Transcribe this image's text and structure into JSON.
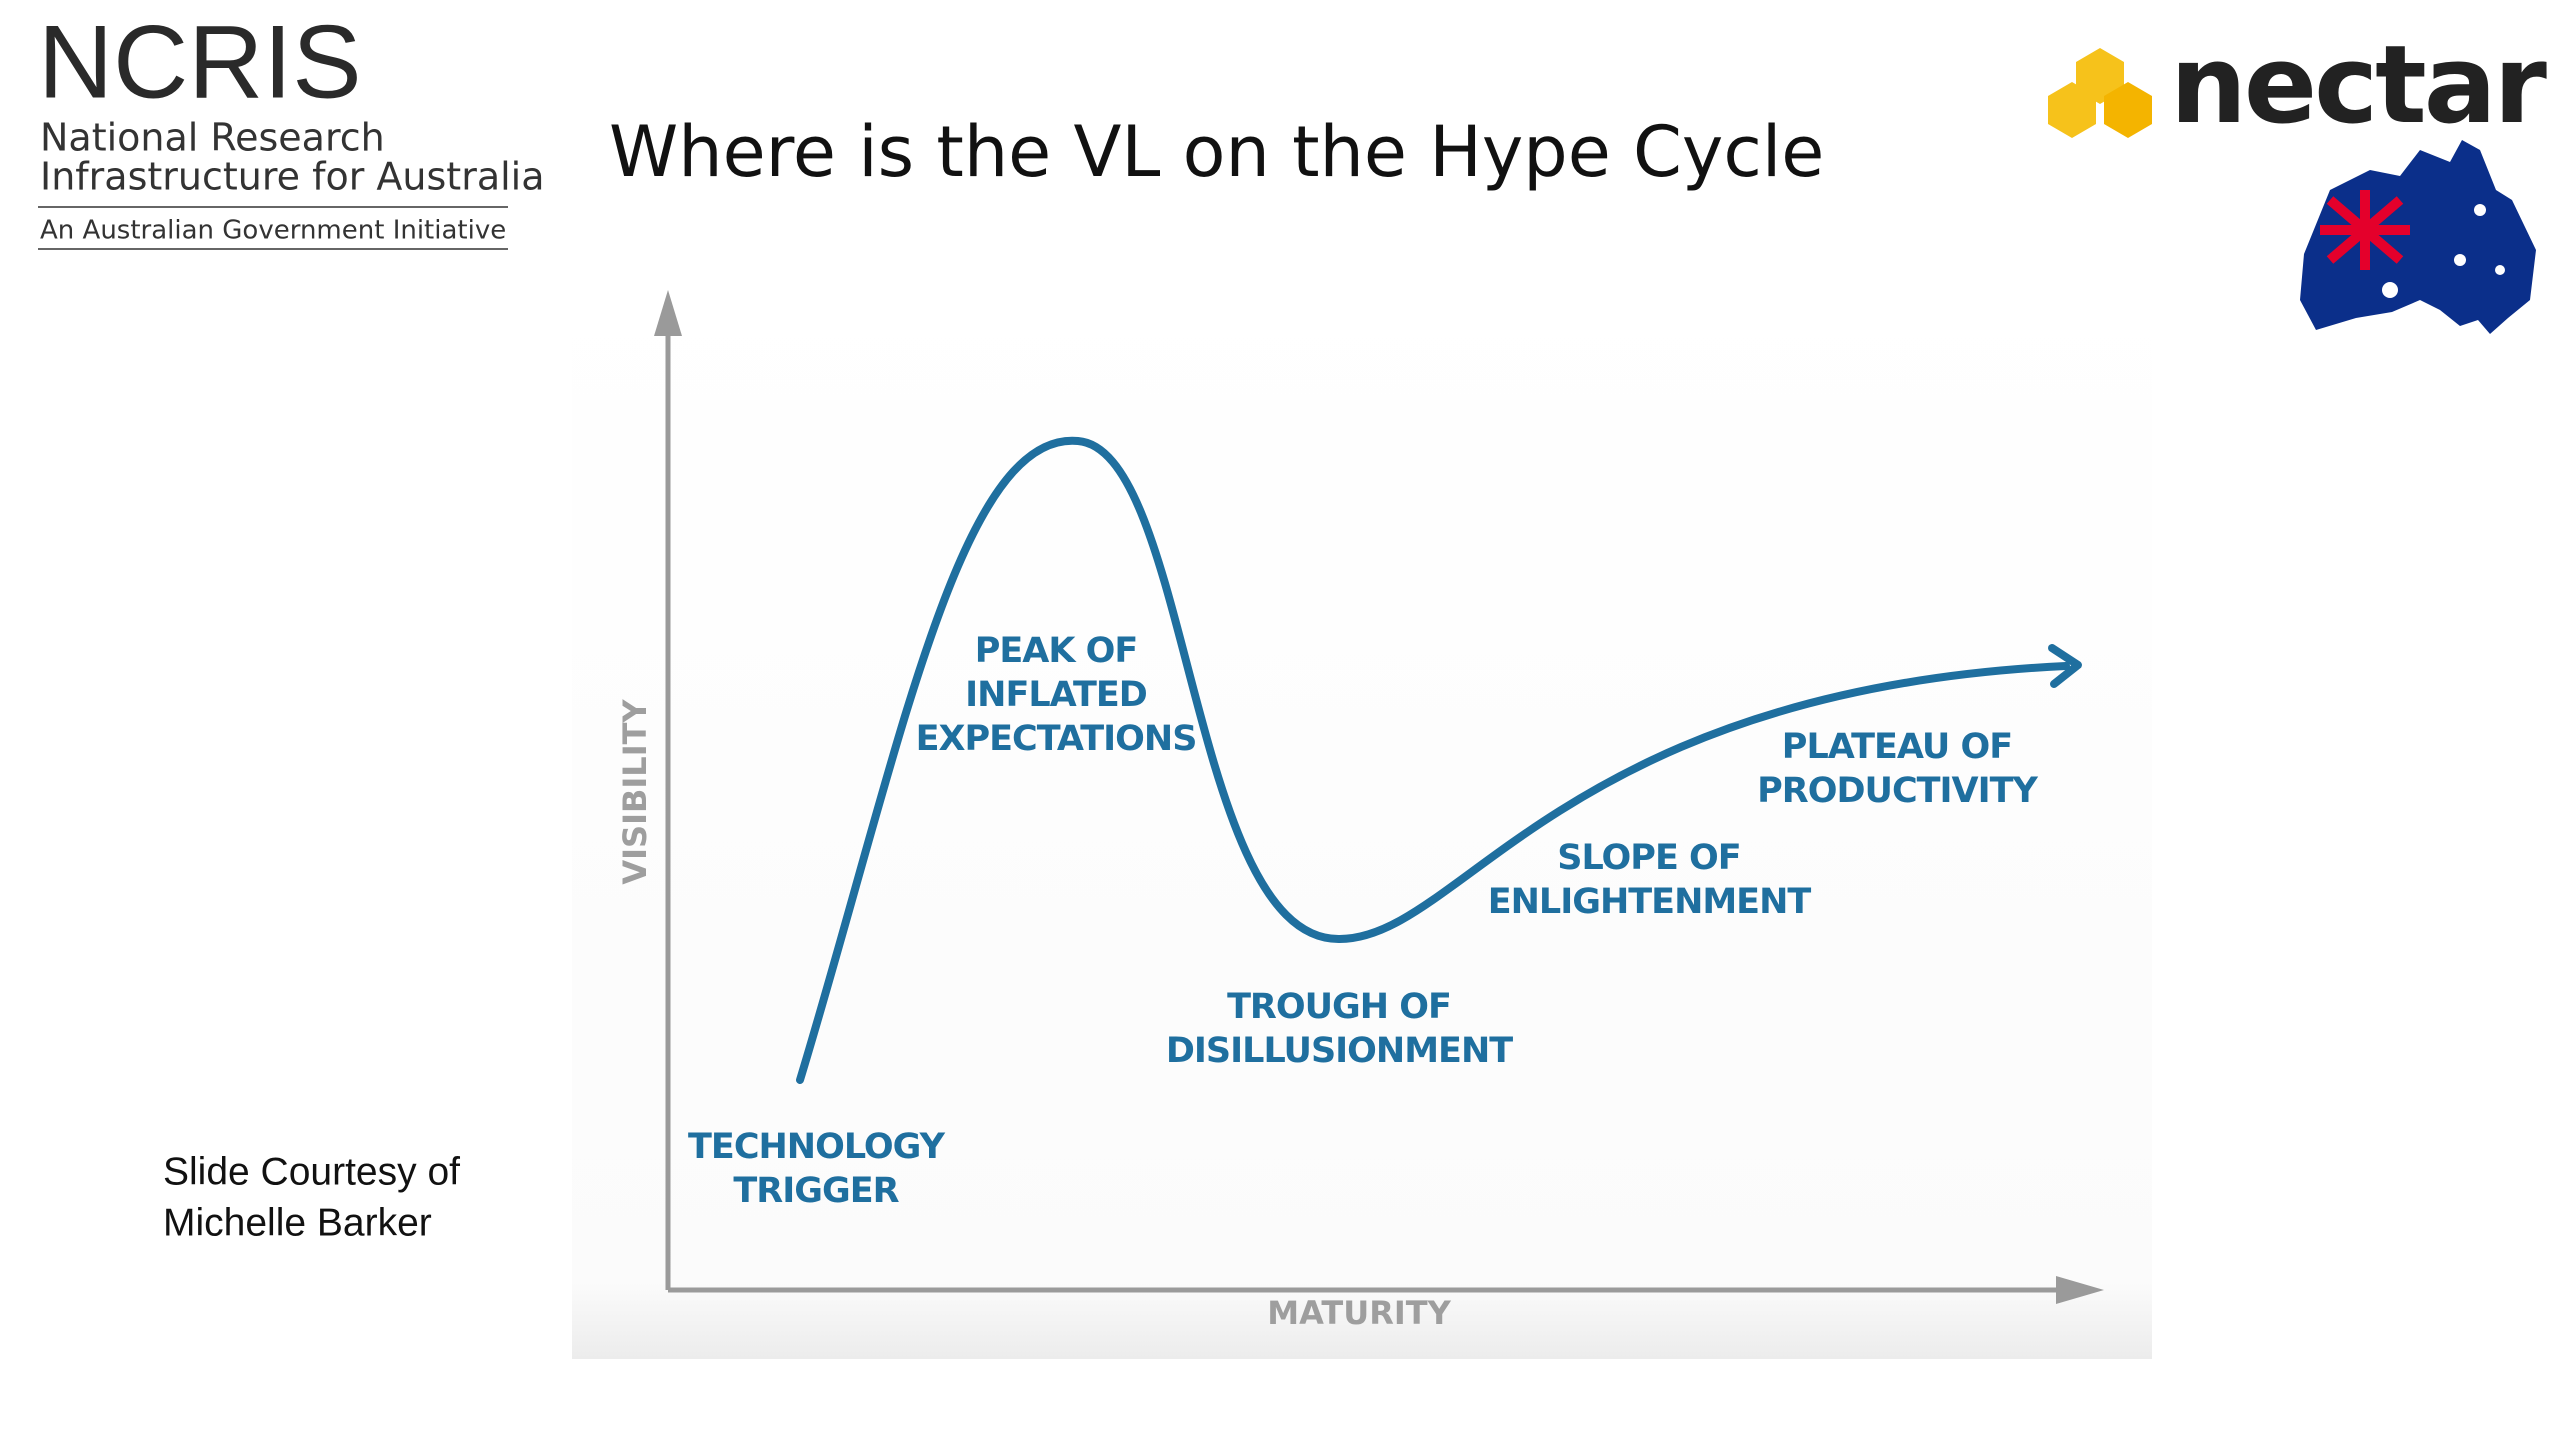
{
  "header": {
    "ncris": {
      "title": "NCRIS",
      "lines": [
        "National Research",
        "Infrastructure for Australia"
      ],
      "tagline": "An Australian Government Initiative"
    },
    "nectar": "nectar",
    "title": "Where is the VL on the Hype Cycle"
  },
  "diagram": {
    "y_axis": "VISIBILITY",
    "x_axis": "MATURITY",
    "phases": [
      {
        "lines": [
          "TECHNOLOGY",
          "TRIGGER"
        ]
      },
      {
        "lines": [
          "PEAK OF",
          "INFLATED",
          "EXPECTATIONS"
        ]
      },
      {
        "lines": [
          "TROUGH OF",
          "DISILLUSIONMENT"
        ]
      },
      {
        "lines": [
          "SLOPE OF",
          "ENLIGHTENMENT"
        ]
      },
      {
        "lines": [
          "PLATEAU OF",
          "PRODUCTIVITY"
        ]
      }
    ]
  },
  "note": {
    "lines": [
      "Slide Courtesy of",
      "Michelle Barker"
    ]
  }
}
